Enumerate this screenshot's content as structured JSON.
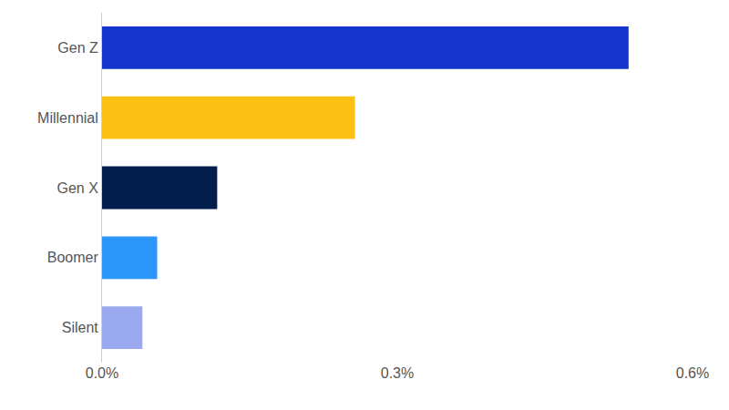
{
  "chart_data": {
    "type": "bar",
    "orientation": "horizontal",
    "categories": [
      "Gen Z",
      "Millennial",
      "Gen X",
      "Boomer",
      "Silent"
    ],
    "values": [
      0.535,
      0.257,
      0.117,
      0.056,
      0.041
    ],
    "colors": [
      "#1434cb",
      "#fcc015",
      "#021e4c",
      "#2b97fa",
      "#9aa9f0"
    ],
    "xlim": [
      0,
      0.6
    ],
    "xticks": [
      {
        "value": 0,
        "label": "0.0%"
      },
      {
        "value": 0.3,
        "label": "0.3%"
      },
      {
        "value": 0.6,
        "label": "0.6%"
      }
    ],
    "grid": false
  }
}
